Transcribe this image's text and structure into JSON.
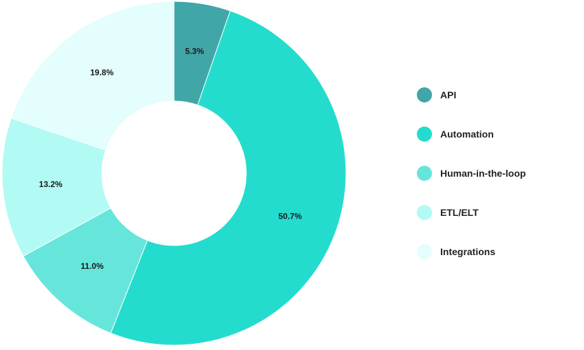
{
  "chart_data": {
    "type": "pie",
    "subtype": "donut",
    "title": "",
    "legend_position": "right",
    "slices": [
      {
        "label": "API",
        "value": 5.3,
        "display": "5.3%",
        "color": "#41a6a8"
      },
      {
        "label": "Automation",
        "value": 50.7,
        "display": "50.7%",
        "color": "#24dccd"
      },
      {
        "label": "Human-in-the-loop",
        "value": 11.0,
        "display": "11.0%",
        "color": "#66e6db"
      },
      {
        "label": "ETL/ELT",
        "value": 13.2,
        "display": "13.2%",
        "color": "#b1fbf4"
      },
      {
        "label": "Integrations",
        "value": 19.8,
        "display": "19.8%",
        "color": "#e3fefc"
      }
    ]
  }
}
